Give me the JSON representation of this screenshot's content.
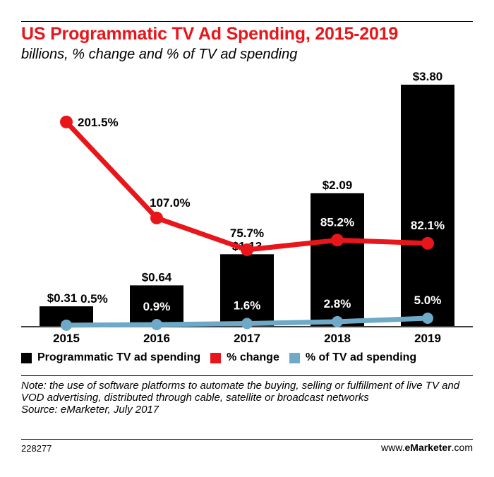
{
  "header": {
    "title": "US Programmatic TV Ad Spending, 2015-2019",
    "subtitle": "billions, % change and % of TV ad spending"
  },
  "colors": {
    "bar": "#000000",
    "change_line": "#e8161a",
    "share_line": "#6fa9c8",
    "title": "#e8161a"
  },
  "chart_data": {
    "type": "bar",
    "categories": [
      "2015",
      "2016",
      "2017",
      "2018",
      "2019"
    ],
    "series": [
      {
        "name": "Programmatic TV ad spending",
        "type": "bar",
        "values": [
          0.31,
          0.64,
          1.13,
          2.09,
          3.8
        ],
        "labels": [
          "$0.31",
          "$0.64",
          "$1.13",
          "$2.09",
          "$3.80"
        ]
      },
      {
        "name": "% change",
        "type": "line",
        "values": [
          201.5,
          107.0,
          75.7,
          85.2,
          82.1
        ],
        "labels": [
          "201.5%",
          "107.0%",
          "75.7%",
          "85.2%",
          "82.1%"
        ]
      },
      {
        "name": "% of TV ad spending",
        "type": "line",
        "values": [
          0.5,
          0.9,
          1.6,
          2.8,
          5.0
        ],
        "labels": [
          "0.5%",
          "0.9%",
          "1.6%",
          "2.8%",
          "5.0%"
        ]
      }
    ],
    "legend_position": "bottom",
    "grid": false
  },
  "legend": {
    "spending": "Programmatic TV ad spending",
    "change": "% change",
    "share": "% of TV ad spending"
  },
  "note": {
    "text": "Note: the use of software platforms to automate the buying, selling or fulfillment of live TV and VOD advertising, distributed through cable, satellite or broadcast networks",
    "source": "Source: eMarketer, July 2017"
  },
  "footer": {
    "chart_id": "228277",
    "brand_prefix": "www.",
    "brand_name": "eMarketer",
    "brand_suffix": ".com"
  }
}
